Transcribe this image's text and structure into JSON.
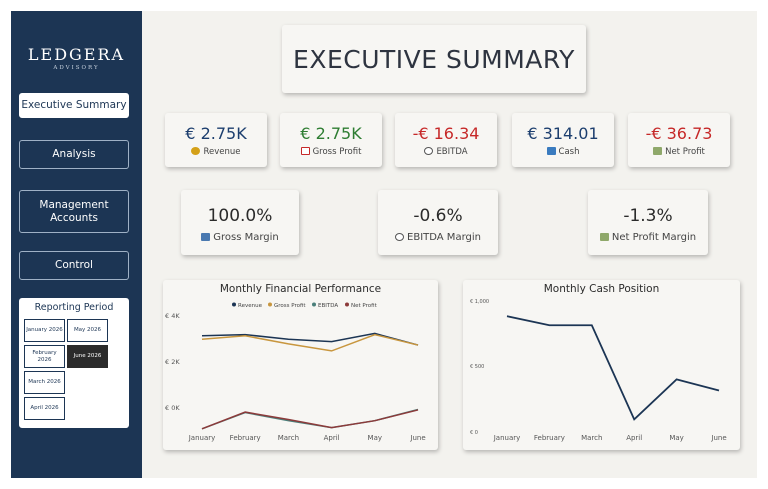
{
  "brand": {
    "name": "LEDGERA",
    "tagline": "ADVISORY"
  },
  "nav": {
    "executive_summary": "Executive Summary",
    "analysis": "Analysis",
    "management_accounts": "Management Accounts",
    "control": "Control"
  },
  "period": {
    "title": "Reporting Period",
    "options": [
      "January 2026",
      "May 2026",
      "February 2026",
      "June 2026",
      "March 2026",
      "April 2026"
    ],
    "selected": "June 2026"
  },
  "header": {
    "title": "EXECUTIVE SUMMARY"
  },
  "kpis": [
    {
      "value": "€ 2.75K",
      "label": "Revenue",
      "color": "#1c3e6e",
      "icon": "money-bag-icon"
    },
    {
      "value": "€ 2.75K",
      "label": "Gross Profit",
      "color": "#2e7d32",
      "icon": "chart-up-icon"
    },
    {
      "value": "-€ 16.34",
      "label": "EBITDA",
      "color": "#c62828",
      "icon": "gear-icon"
    },
    {
      "value": "€ 314.01",
      "label": "Cash",
      "color": "#1c3e6e",
      "icon": "bank-icon"
    },
    {
      "value": "-€ 36.73",
      "label": "Net Profit",
      "color": "#c62828",
      "icon": "cash-icon"
    }
  ],
  "margins": [
    {
      "value": "100.0%",
      "label": "Gross Margin",
      "icon": "bar-chart-icon"
    },
    {
      "value": "-0.6%",
      "label": "EBITDA Margin",
      "icon": "gear-icon"
    },
    {
      "value": "-1.3%",
      "label": "Net Profit Margin",
      "icon": "cash-icon"
    }
  ],
  "chart_data": [
    {
      "type": "line",
      "title": "Monthly Financial Performance",
      "categories": [
        "January",
        "February",
        "March",
        "April",
        "May",
        "June"
      ],
      "yticks": [
        "€ 4K",
        "€ 2K",
        "€ 0K"
      ],
      "ylim": [
        -900,
        4000
      ],
      "legend_position": "top",
      "series": [
        {
          "name": "Revenue",
          "color": "#1c3554",
          "values": [
            3150,
            3200,
            3000,
            2900,
            3250,
            2750
          ]
        },
        {
          "name": "Gross Profit",
          "color": "#c8963e",
          "values": [
            3000,
            3150,
            2800,
            2500,
            3200,
            2750
          ]
        },
        {
          "name": "EBITDA",
          "color": "#4a7f7a",
          "values": [
            -850,
            -150,
            -500,
            -800,
            -500,
            -16
          ]
        },
        {
          "name": "Net Profit",
          "color": "#8c3a3a",
          "values": [
            -850,
            -130,
            -450,
            -800,
            -500,
            -37
          ]
        }
      ]
    },
    {
      "type": "line",
      "title": "Monthly Cash Position",
      "categories": [
        "January",
        "February",
        "March",
        "April",
        "May",
        "June"
      ],
      "yticks": [
        "€ 1,000",
        "€ 500",
        "€ 0"
      ],
      "ylim": [
        0,
        1000
      ],
      "series": [
        {
          "color": "#1c3554",
          "values": [
            890,
            820,
            820,
            90,
            400,
            314
          ]
        }
      ]
    }
  ]
}
